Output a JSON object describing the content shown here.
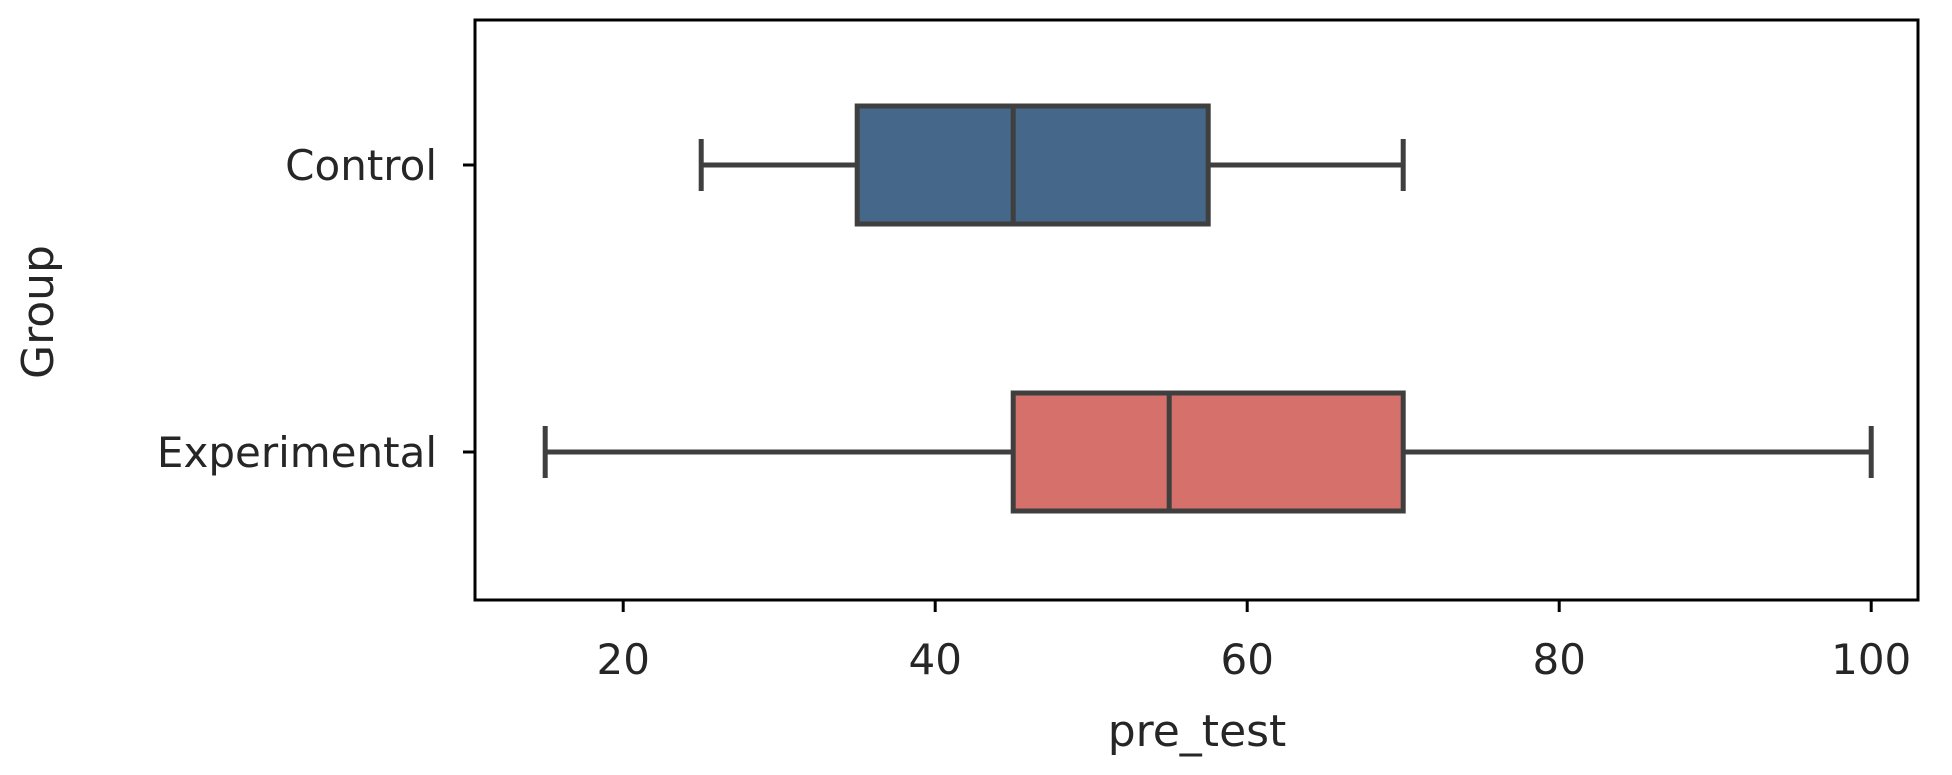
{
  "chart_data": {
    "type": "boxplot",
    "orientation": "horizontal",
    "title": "",
    "xlabel": "pre_test",
    "ylabel": "Group",
    "xlim": [
      10.5,
      103
    ],
    "xticks": [
      20,
      40,
      60,
      80,
      100
    ],
    "grid": false,
    "categories": [
      "Control",
      "Experimental"
    ],
    "boxes": [
      {
        "group": "Control",
        "whisker_low": 25,
        "q1": 35,
        "median": 45,
        "q3": 57.5,
        "whisker_high": 70,
        "color": "#456789"
      },
      {
        "group": "Experimental",
        "whisker_low": 15,
        "q1": 45,
        "median": 55,
        "q3": 70,
        "whisker_high": 100,
        "color": "#d6706a"
      }
    ],
    "line_color": "#3f3f3f"
  }
}
